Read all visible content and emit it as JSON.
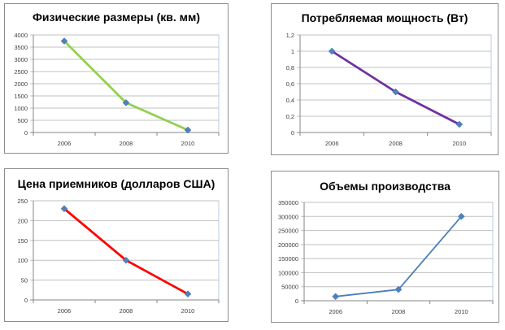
{
  "chart_data": [
    {
      "type": "line",
      "title": "Физические размеры (кв. мм)",
      "categories": [
        "2006",
        "2008",
        "2010"
      ],
      "values": [
        3750,
        1220,
        100
      ],
      "yticks": [
        "0",
        "500",
        "1000",
        "1500",
        "2000",
        "2500",
        "3000",
        "3500",
        "4000"
      ],
      "ylim": [
        0,
        4000
      ],
      "line_color": "#92d050",
      "grid": true
    },
    {
      "type": "line",
      "title": "Потребляемая мощность (Вт)",
      "categories": [
        "2006",
        "2008",
        "2010"
      ],
      "values": [
        1,
        0.5,
        0.1
      ],
      "yticks": [
        "0",
        "0,2",
        "0,4",
        "0,6",
        "0,8",
        "1",
        "1,2"
      ],
      "ylim": [
        0,
        1.2
      ],
      "line_color": "#7030a0",
      "grid": true
    },
    {
      "type": "line",
      "title": "Цена приемников (долларов США)",
      "categories": [
        "2006",
        "2008",
        "2010"
      ],
      "values": [
        230,
        100,
        15
      ],
      "yticks": [
        "0",
        "50",
        "100",
        "150",
        "200",
        "250"
      ],
      "ylim": [
        0,
        250
      ],
      "line_color": "#ff0000",
      "grid": true
    },
    {
      "type": "line",
      "title": "Объемы производства",
      "categories": [
        "2006",
        "2008",
        "2010"
      ],
      "values": [
        15000,
        40000,
        300000
      ],
      "yticks": [
        "0",
        "50000",
        "100000",
        "150000",
        "200000",
        "250000",
        "300000",
        "350000"
      ],
      "ylim": [
        0,
        350000
      ],
      "line_color": "#4a7ebb",
      "grid": true
    }
  ]
}
